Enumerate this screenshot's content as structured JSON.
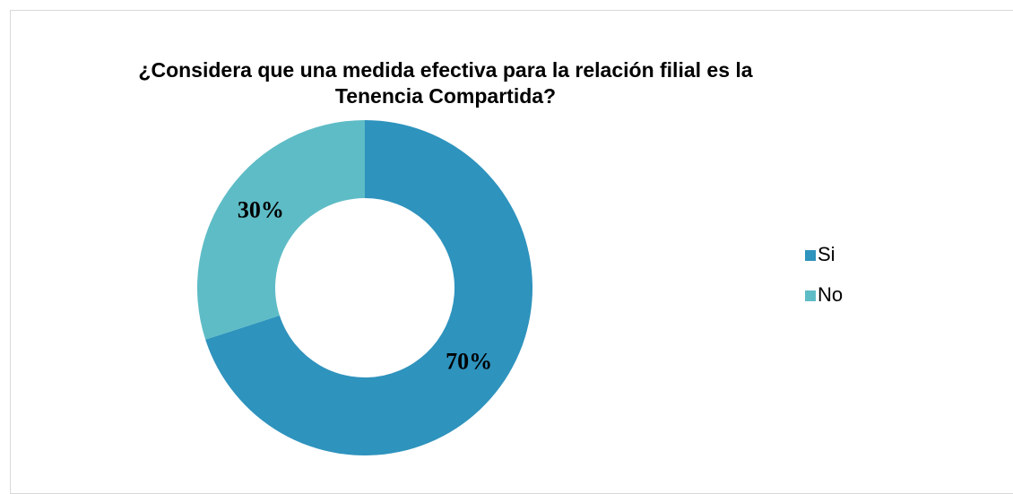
{
  "chart_data": {
    "type": "donut",
    "title": "¿Considera que una medida efectiva para la relación filial es la Tenencia Compartida?",
    "categories": [
      "Si",
      "No"
    ],
    "values": [
      70,
      30
    ],
    "value_labels": [
      "70%",
      "30%"
    ],
    "colors": [
      "#2e93bd",
      "#5ebcc6"
    ],
    "legend": "right"
  }
}
